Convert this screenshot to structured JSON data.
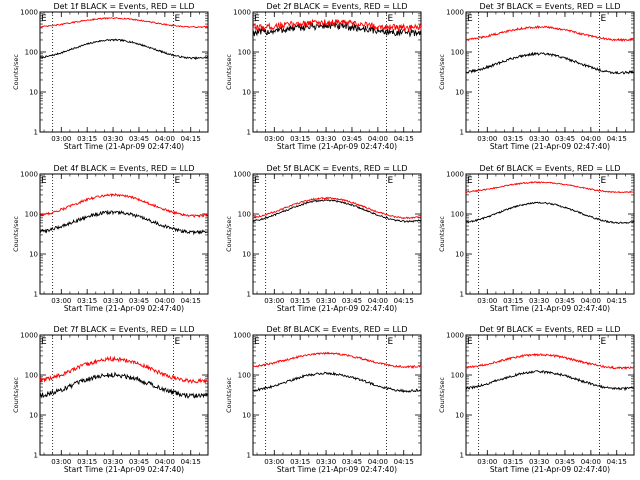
{
  "chart_data": [
    {
      "type": "line",
      "title": "Det 1f BLACK = Events, RED = LLD",
      "xlabel": "Start Time (21-Apr-09 02:47:40)",
      "ylabel": "Counts/sec",
      "yscale": "log",
      "ylim": [
        1,
        1000
      ],
      "yticks": [
        "1",
        "10",
        "100",
        "1000"
      ],
      "xlim": [
        "02:47:40",
        "04:25:00"
      ],
      "xticks": [
        "03:00",
        "03:15",
        "03:30",
        "03:45",
        "04:00",
        "04:15"
      ],
      "vlines": [
        "02:55",
        "04:05"
      ],
      "markers": [
        "E",
        "E"
      ],
      "series": [
        {
          "color": "#000000",
          "base": 70,
          "peak": 200,
          "noise": 0.02
        },
        {
          "color": "#ff0000",
          "base": 420,
          "peak": 700,
          "noise": 0.015
        }
      ]
    },
    {
      "type": "line",
      "title": "Det 2f BLACK = Events, RED = LLD",
      "xlabel": "Start Time (21-Apr-09 02:47:40)",
      "ylabel": "Counts/sec",
      "yscale": "log",
      "ylim": [
        1,
        1000
      ],
      "yticks": [
        "1",
        "10",
        "100",
        "1000"
      ],
      "xlim": [
        "02:47:40",
        "04:25:00"
      ],
      "xticks": [
        "03:00",
        "03:15",
        "03:30",
        "03:45",
        "04:00",
        "04:15"
      ],
      "vlines": [
        "02:55",
        "04:05"
      ],
      "markers": [
        "E",
        "E"
      ],
      "series": [
        {
          "color": "#000000",
          "base": 300,
          "peak": 450,
          "noise": 0.09
        },
        {
          "color": "#ff0000",
          "base": 400,
          "peak": 550,
          "noise": 0.08
        }
      ]
    },
    {
      "type": "line",
      "title": "Det 3f BLACK = Events, RED = LLD",
      "xlabel": "Start Time (21-Apr-09 02:47:40)",
      "ylabel": "Counts/sec",
      "yscale": "log",
      "ylim": [
        1,
        1000
      ],
      "yticks": [
        "1",
        "10",
        "100",
        "1000"
      ],
      "xlim": [
        "02:47:40",
        "04:25:00"
      ],
      "xticks": [
        "03:00",
        "03:15",
        "03:30",
        "03:45",
        "04:00",
        "04:15"
      ],
      "vlines": [
        "02:55",
        "04:05"
      ],
      "markers": [
        "E",
        "E"
      ],
      "series": [
        {
          "color": "#000000",
          "base": 30,
          "peak": 90,
          "noise": 0.03
        },
        {
          "color": "#ff0000",
          "base": 200,
          "peak": 420,
          "noise": 0.025
        }
      ]
    },
    {
      "type": "line",
      "title": "Det 4f BLACK = Events, RED = LLD",
      "xlabel": "Start Time (21-Apr-09 02:47:40)",
      "ylabel": "Counts/sec",
      "yscale": "log",
      "ylim": [
        1,
        1000
      ],
      "yticks": [
        "1",
        "10",
        "100",
        "1000"
      ],
      "xlim": [
        "02:47:40",
        "04:25:00"
      ],
      "xticks": [
        "03:00",
        "03:15",
        "03:30",
        "03:45",
        "04:00",
        "04:15"
      ],
      "vlines": [
        "02:55",
        "04:05"
      ],
      "markers": [
        "E",
        "E"
      ],
      "series": [
        {
          "color": "#000000",
          "base": 35,
          "peak": 110,
          "noise": 0.04
        },
        {
          "color": "#ff0000",
          "base": 90,
          "peak": 300,
          "noise": 0.03
        }
      ]
    },
    {
      "type": "line",
      "title": "Det 5f BLACK = Events, RED = LLD",
      "xlabel": "Start Time (21-Apr-09 02:47:40)",
      "ylabel": "Counts/sec",
      "yscale": "log",
      "ylim": [
        1,
        1000
      ],
      "yticks": [
        "1",
        "10",
        "100",
        "1000"
      ],
      "xlim": [
        "02:47:40",
        "04:25:00"
      ],
      "xticks": [
        "03:00",
        "03:15",
        "03:30",
        "03:45",
        "04:00",
        "04:15"
      ],
      "vlines": [
        "02:55",
        "04:05"
      ],
      "markers": [
        "E",
        "E"
      ],
      "series": [
        {
          "color": "#000000",
          "base": 65,
          "peak": 220,
          "noise": 0.02
        },
        {
          "color": "#ff0000",
          "base": 80,
          "peak": 250,
          "noise": 0.02
        }
      ]
    },
    {
      "type": "line",
      "title": "Det 6f BLACK = Events, RED = LLD",
      "xlabel": "Start Time (21-Apr-09 02:47:40)",
      "ylabel": "Counts/sec",
      "yscale": "log",
      "ylim": [
        1,
        1000
      ],
      "yticks": [
        "1",
        "10",
        "100",
        "1000"
      ],
      "xlim": [
        "02:47:40",
        "04:25:00"
      ],
      "xticks": [
        "03:00",
        "03:15",
        "03:30",
        "03:45",
        "04:00",
        "04:15"
      ],
      "vlines": [
        "02:55",
        "04:05"
      ],
      "markers": [
        "E",
        "E"
      ],
      "series": [
        {
          "color": "#000000",
          "base": 60,
          "peak": 190,
          "noise": 0.02
        },
        {
          "color": "#ff0000",
          "base": 350,
          "peak": 620,
          "noise": 0.015
        }
      ]
    },
    {
      "type": "line",
      "title": "Det 7f BLACK = Events, RED = LLD",
      "xlabel": "Start Time (21-Apr-09 02:47:40)",
      "ylabel": "Counts/sec",
      "yscale": "log",
      "ylim": [
        1,
        1000
      ],
      "yticks": [
        "1",
        "10",
        "100",
        "1000"
      ],
      "xlim": [
        "02:47:40",
        "04:25:00"
      ],
      "xticks": [
        "03:00",
        "03:15",
        "03:30",
        "03:45",
        "04:00",
        "04:15"
      ],
      "vlines": [
        "02:55",
        "04:05"
      ],
      "markers": [
        "E",
        "E"
      ],
      "series": [
        {
          "color": "#000000",
          "base": 30,
          "peak": 100,
          "noise": 0.06
        },
        {
          "color": "#ff0000",
          "base": 70,
          "peak": 250,
          "noise": 0.05
        }
      ]
    },
    {
      "type": "line",
      "title": "Det 8f BLACK = Events, RED = LLD",
      "xlabel": "Start Time (21-Apr-09 02:47:40)",
      "ylabel": "Counts/sec",
      "yscale": "log",
      "ylim": [
        1,
        1000
      ],
      "yticks": [
        "1",
        "10",
        "100",
        "1000"
      ],
      "xlim": [
        "02:47:40",
        "04:25:00"
      ],
      "xticks": [
        "03:00",
        "03:15",
        "03:30",
        "03:45",
        "04:00",
        "04:15"
      ],
      "vlines": [
        "02:55",
        "04:05"
      ],
      "markers": [
        "E",
        "E"
      ],
      "series": [
        {
          "color": "#000000",
          "base": 40,
          "peak": 110,
          "noise": 0.03
        },
        {
          "color": "#ff0000",
          "base": 160,
          "peak": 350,
          "noise": 0.025
        }
      ]
    },
    {
      "type": "line",
      "title": "Det 9f BLACK = Events, RED = LLD",
      "xlabel": "Start Time (21-Apr-09 02:47:40)",
      "ylabel": "Counts/sec",
      "yscale": "log",
      "ylim": [
        1,
        1000
      ],
      "yticks": [
        "1",
        "10",
        "100",
        "1000"
      ],
      "xlim": [
        "02:47:40",
        "04:25:00"
      ],
      "xticks": [
        "03:00",
        "03:15",
        "03:30",
        "03:45",
        "04:00",
        "04:15"
      ],
      "vlines": [
        "02:55",
        "04:05"
      ],
      "markers": [
        "E",
        "E"
      ],
      "series": [
        {
          "color": "#000000",
          "base": 45,
          "peak": 120,
          "noise": 0.03
        },
        {
          "color": "#ff0000",
          "base": 150,
          "peak": 320,
          "noise": 0.025
        }
      ]
    }
  ]
}
